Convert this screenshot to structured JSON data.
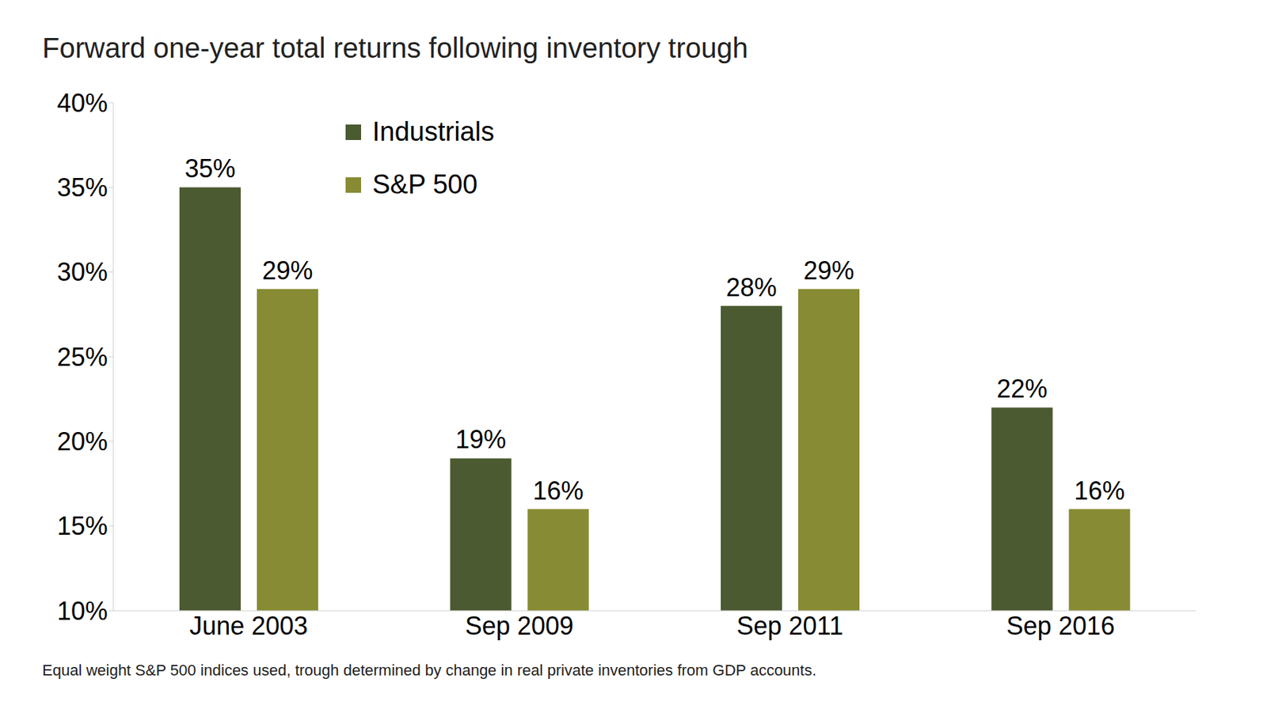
{
  "chart_data": {
    "type": "bar",
    "title": "Forward one-year total returns following inventory trough",
    "footnote": "Equal weight S&P 500 indices used, trough determined by change in real private inventories from GDP accounts.",
    "categories": [
      "June 2003",
      "Sep 2009",
      "Sep 2011",
      "Sep 2016"
    ],
    "series": [
      {
        "name": "Industrials",
        "color": "#4b5a31",
        "values": [
          35,
          19,
          28,
          22
        ],
        "value_labels": [
          "35%",
          "19%",
          "28%",
          "22%"
        ]
      },
      {
        "name": "S&P 500",
        "color": "#878b33",
        "values": [
          29,
          16,
          29,
          16
        ],
        "value_labels": [
          "29%",
          "16%",
          "29%",
          "16%"
        ]
      }
    ],
    "ylim": [
      10,
      40
    ],
    "yticks": [
      {
        "value": 10,
        "label": "10%"
      },
      {
        "value": 15,
        "label": "15%"
      },
      {
        "value": 20,
        "label": "20%"
      },
      {
        "value": 25,
        "label": "25%"
      },
      {
        "value": 30,
        "label": "30%"
      },
      {
        "value": 35,
        "label": "35%"
      },
      {
        "value": 40,
        "label": "40%"
      }
    ],
    "grid": false,
    "legend": "upper left",
    "data_labels": true
  }
}
